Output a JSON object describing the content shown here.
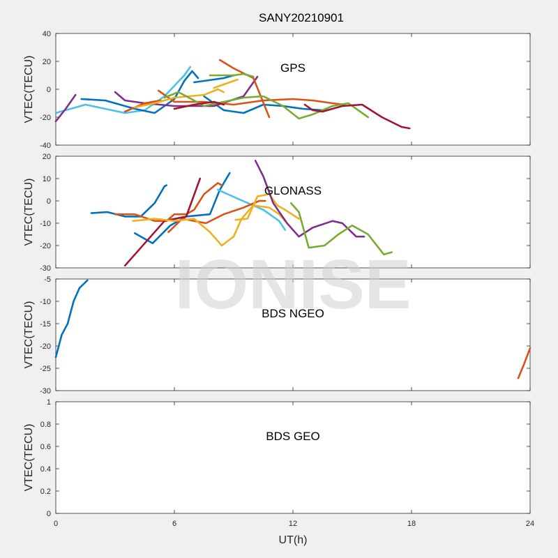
{
  "chart_data": {
    "type": "line",
    "title": "SANY20210901",
    "xlabel": "UT(h)",
    "xlim": [
      0,
      24
    ],
    "xticks": [
      0,
      6,
      12,
      18,
      24
    ],
    "xtick_labels": [
      "0",
      "6",
      "12",
      "18",
      "24"
    ],
    "watermark": "IONISE",
    "grid": false,
    "panels": [
      {
        "label": "GPS",
        "ylabel": "VTEC(TECU)",
        "ylim": [
          -40,
          40
        ],
        "yticks": [
          -40,
          -20,
          0,
          20,
          40
        ],
        "ytick_labels": [
          "-40",
          "-20",
          "0",
          "20",
          "40"
        ],
        "series": [
          {
            "color": "#4DBEEE",
            "points": [
              [
                0,
                -17
              ],
              [
                1.5,
                -11
              ],
              [
                3.5,
                -17
              ],
              [
                4.5,
                -15
              ],
              [
                5.5,
                -5
              ],
              [
                6.5,
                10
              ],
              [
                6.8,
                16
              ]
            ]
          },
          {
            "color": "#0072BD",
            "points": [
              [
                1.3,
                -7
              ],
              [
                2.5,
                -8
              ],
              [
                4,
                -14
              ],
              [
                5,
                -17
              ],
              [
                6,
                -7
              ],
              [
                6.5,
                6
              ],
              [
                6.9,
                13
              ],
              [
                7.2,
                8
              ]
            ]
          },
          {
            "color": "#0072BD",
            "points": [
              [
                7,
                5
              ],
              [
                8.5,
                8
              ],
              [
                9,
                10
              ]
            ]
          },
          {
            "color": "#0072BD",
            "points": [
              [
                7.5,
                -5
              ],
              [
                8.5,
                -15
              ],
              [
                9.5,
                -17
              ],
              [
                10.5,
                -11
              ],
              [
                11.5,
                -12
              ],
              [
                12.5,
                -14
              ],
              [
                13.5,
                -15
              ]
            ]
          },
          {
            "color": "#7E2F8E",
            "points": [
              [
                0,
                -23
              ],
              [
                0.5,
                -14
              ],
              [
                1,
                -4
              ]
            ]
          },
          {
            "color": "#7E2F8E",
            "points": [
              [
                3,
                -2
              ],
              [
                3.5,
                -8
              ],
              [
                4.5,
                -10
              ],
              [
                6,
                -12
              ],
              [
                8,
                -12
              ],
              [
                9.5,
                -5
              ],
              [
                10.2,
                9
              ]
            ]
          },
          {
            "color": "#D95319",
            "points": [
              [
                5.2,
                -1
              ],
              [
                6,
                -9
              ],
              [
                7.5,
                -9
              ],
              [
                9,
                -11
              ],
              [
                10.5,
                -8
              ],
              [
                12,
                -7
              ],
              [
                13,
                -8
              ],
              [
                14,
                -10
              ],
              [
                14.6,
                -11
              ]
            ]
          },
          {
            "color": "#D95319",
            "points": [
              [
                8.3,
                21
              ],
              [
                9,
                15
              ],
              [
                10,
                8
              ],
              [
                10.8,
                -20
              ]
            ]
          },
          {
            "color": "#D95319",
            "points": [
              [
                3.5,
                -16
              ],
              [
                4.5,
                -10
              ],
              [
                5.3,
                -8
              ]
            ]
          },
          {
            "color": "#EDB120",
            "points": [
              [
                4,
                -13
              ],
              [
                5,
                -10
              ],
              [
                6,
                -6
              ],
              [
                7.5,
                -4
              ],
              [
                8.2,
                0
              ],
              [
                8.5,
                -2
              ]
            ]
          },
          {
            "color": "#EDB120",
            "points": [
              [
                8,
                1
              ],
              [
                9,
                6
              ],
              [
                9.2,
                7
              ]
            ]
          },
          {
            "color": "#77AC30",
            "points": [
              [
                5.5,
                -6
              ],
              [
                6.2,
                -2
              ],
              [
                7,
                -8
              ],
              [
                7.5,
                -12
              ],
              [
                8.5,
                -9
              ],
              [
                9.5,
                -6
              ],
              [
                10.5,
                -5
              ],
              [
                11.5,
                -12
              ],
              [
                12.3,
                -21
              ],
              [
                13,
                -18
              ],
              [
                14,
                -12
              ],
              [
                14.8,
                -10
              ],
              [
                15.8,
                -20
              ]
            ]
          },
          {
            "color": "#77AC30",
            "points": [
              [
                7.8,
                10
              ],
              [
                9,
                10
              ],
              [
                9.5,
                11
              ],
              [
                10,
                9
              ]
            ]
          },
          {
            "color": "#A2142F",
            "points": [
              [
                6,
                -14
              ],
              [
                7,
                -11
              ],
              [
                8,
                -9
              ],
              [
                8.5,
                -11
              ]
            ]
          },
          {
            "color": "#A2142F",
            "points": [
              [
                12.6,
                -11
              ],
              [
                13,
                -15
              ],
              [
                13.5,
                -16
              ],
              [
                14.5,
                -12
              ],
              [
                15.5,
                -11
              ],
              [
                16.5,
                -20
              ],
              [
                17.5,
                -27
              ],
              [
                17.9,
                -28
              ]
            ]
          }
        ]
      },
      {
        "label": "GLONASS",
        "ylabel": "VTEC(TECU)",
        "ylim": [
          -30,
          20
        ],
        "yticks": [
          -30,
          -20,
          -10,
          0,
          10,
          20
        ],
        "ytick_labels": [
          "-30",
          "-20",
          "-10",
          "0",
          "10",
          "20"
        ],
        "series": [
          {
            "color": "#0072BD",
            "points": [
              [
                1.8,
                -5.5
              ],
              [
                2.6,
                -5
              ],
              [
                3.5,
                -7
              ],
              [
                4.3,
                -7
              ],
              [
                5,
                -1
              ],
              [
                5.5,
                6.5
              ],
              [
                5.6,
                7
              ]
            ]
          },
          {
            "color": "#0072BD",
            "points": [
              [
                4,
                -14.5
              ],
              [
                4.9,
                -19
              ],
              [
                5.8,
                -11
              ],
              [
                6.6,
                -7
              ],
              [
                7.8,
                -6
              ],
              [
                8.3,
                5
              ],
              [
                8.8,
                12.5
              ]
            ]
          },
          {
            "color": "#4DBEEE",
            "points": [
              [
                8.2,
                5
              ],
              [
                9.2,
                1
              ],
              [
                10.5,
                -4
              ],
              [
                11.3,
                -9
              ],
              [
                11.6,
                -13
              ]
            ]
          },
          {
            "color": "#D95319",
            "points": [
              [
                3,
                -6
              ],
              [
                4,
                -6
              ],
              [
                5,
                -9
              ],
              [
                5.6,
                -9
              ],
              [
                6,
                -6
              ],
              [
                6.6,
                -6
              ],
              [
                7,
                -4
              ],
              [
                7.5,
                3
              ],
              [
                8.2,
                8
              ],
              [
                8.4,
                7
              ]
            ]
          },
          {
            "color": "#D95319",
            "points": [
              [
                5.7,
                -14
              ],
              [
                6.4,
                -8
              ],
              [
                7.6,
                -10
              ],
              [
                8.5,
                -6
              ],
              [
                9.5,
                -3
              ],
              [
                10.3,
                0
              ],
              [
                10.6,
                0
              ]
            ]
          },
          {
            "color": "#A2142F",
            "points": [
              [
                3.5,
                -29
              ],
              [
                4.5,
                -19
              ],
              [
                5.5,
                -9
              ],
              [
                6.6,
                -7
              ],
              [
                7.3,
                10
              ]
            ]
          },
          {
            "color": "#EDB120",
            "points": [
              [
                3.9,
                -9
              ],
              [
                5,
                -8
              ],
              [
                6,
                -9
              ],
              [
                7,
                -8
              ],
              [
                7.8,
                -14
              ],
              [
                8.4,
                -20
              ],
              [
                9,
                -16
              ],
              [
                9.4,
                -8
              ],
              [
                10,
                -2
              ],
              [
                10.8,
                -3
              ],
              [
                11.3,
                -6
              ],
              [
                11.6,
                -9
              ]
            ]
          },
          {
            "color": "#EDB120",
            "points": [
              [
                9.1,
                -8.5
              ],
              [
                9.7,
                -8
              ],
              [
                10.2,
                2
              ],
              [
                10.8,
                3
              ],
              [
                11.2,
                -2
              ],
              [
                11.6,
                -4
              ],
              [
                12.3,
                -8
              ]
            ]
          },
          {
            "color": "#7E2F8E",
            "points": [
              [
                10.1,
                18
              ],
              [
                10.5,
                11
              ],
              [
                11,
                -1
              ],
              [
                11.7,
                -10
              ],
              [
                12.3,
                -16
              ],
              [
                13,
                -12
              ],
              [
                14,
                -9
              ],
              [
                14.5,
                -10
              ],
              [
                15.2,
                -16
              ],
              [
                15.6,
                -16
              ]
            ]
          },
          {
            "color": "#77AC30",
            "points": [
              [
                11.9,
                -1
              ],
              [
                12.3,
                -5
              ],
              [
                12.8,
                -21
              ],
              [
                13.6,
                -20
              ],
              [
                14.3,
                -15
              ],
              [
                15,
                -11
              ],
              [
                15.8,
                -15
              ],
              [
                16.6,
                -24
              ],
              [
                17,
                -23
              ]
            ]
          }
        ]
      },
      {
        "label": "BDS NGEO",
        "ylabel": "VTEC(TECU)",
        "ylim": [
          -30,
          -5
        ],
        "yticks": [
          -30,
          -25,
          -20,
          -15,
          -10,
          -5
        ],
        "ytick_labels": [
          "-30",
          "-25",
          "-20",
          "-15",
          "-10",
          "-5"
        ],
        "series": [
          {
            "color": "#0072BD",
            "points": [
              [
                0,
                -22.5
              ],
              [
                0.3,
                -17.5
              ],
              [
                0.6,
                -15
              ],
              [
                0.9,
                -10
              ],
              [
                1.2,
                -7
              ],
              [
                1.6,
                -5.3
              ]
            ]
          },
          {
            "color": "#D95319",
            "points": [
              [
                23.4,
                -27.2
              ],
              [
                23.7,
                -24
              ],
              [
                24,
                -20.5
              ]
            ]
          }
        ]
      },
      {
        "label": "BDS GEO",
        "ylabel": "VTEC(TECU)",
        "ylim": [
          0,
          1
        ],
        "yticks": [
          0,
          0.2,
          0.4,
          0.6,
          0.8,
          1
        ],
        "ytick_labels": [
          "0",
          "0.2",
          "0.4",
          "0.6",
          "0.8",
          "1"
        ],
        "series": []
      }
    ]
  }
}
